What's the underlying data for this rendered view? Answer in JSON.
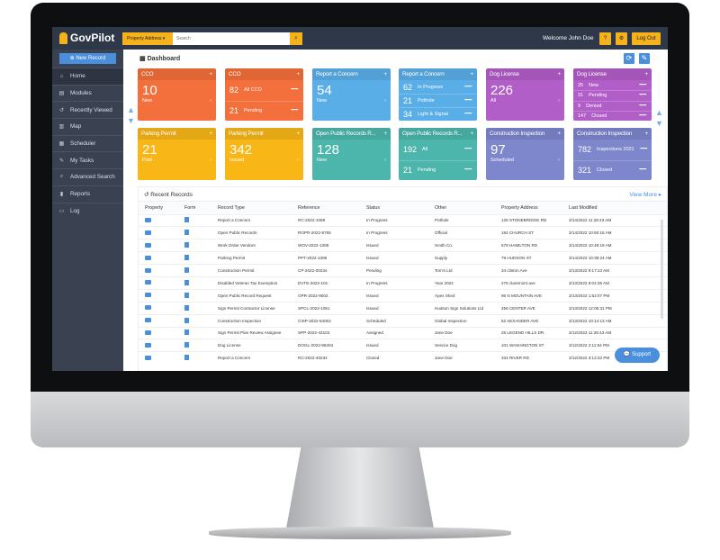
{
  "header": {
    "brand": "GovPilot",
    "search_scope": "Property Address",
    "search_placeholder": "Search",
    "welcome": "Welcome John Doe",
    "help": "?",
    "settings": "⚙",
    "logout": "Log Out"
  },
  "sidebar": {
    "new_record": "New Record",
    "items": [
      {
        "label": "Home",
        "icon": "home"
      },
      {
        "label": "Modules",
        "icon": "file"
      },
      {
        "label": "Recently Viewed",
        "icon": "history"
      },
      {
        "label": "Map",
        "icon": "map"
      },
      {
        "label": "Scheduler",
        "icon": "calendar"
      },
      {
        "label": "My Tasks",
        "icon": "edit"
      },
      {
        "label": "Advanced Search",
        "icon": "search"
      },
      {
        "label": "Reports",
        "icon": "chart"
      },
      {
        "label": "Log",
        "icon": "folder"
      }
    ]
  },
  "dashboard": {
    "title": "Dashboard",
    "tiles": [
      {
        "title": "CCO",
        "color": "#f36f3b",
        "number": "10",
        "label": "New"
      },
      {
        "title": "CCO",
        "color": "#f36f3b",
        "rows": [
          [
            "82",
            "All CCO"
          ],
          [
            "21",
            "Pending"
          ]
        ]
      },
      {
        "title": "Report a Concern",
        "color": "#5aaee8",
        "number": "54",
        "label": "New"
      },
      {
        "title": "Report a Concern",
        "color": "#5aaee8",
        "rows": [
          [
            "62",
            "In Progress"
          ],
          [
            "21",
            "Pothole"
          ],
          [
            "34",
            "Light & Signal"
          ]
        ]
      },
      {
        "title": "Dog License",
        "color": "#b25ec8",
        "number": "226",
        "label": "All"
      },
      {
        "title": "Dog License",
        "color": "#b25ec8",
        "rows": [
          [
            "25",
            "New"
          ],
          [
            "31",
            "Pending"
          ],
          [
            "9",
            "Denied"
          ],
          [
            "147",
            "Closed"
          ]
        ]
      },
      {
        "title": "Parking Permit",
        "color": "#f8b617",
        "number": "21",
        "label": "Paid"
      },
      {
        "title": "Parking Permit",
        "color": "#f8b617",
        "number": "342",
        "label": "Issued"
      },
      {
        "title": "Open Public Records R...",
        "color": "#4db6ac",
        "number": "128",
        "label": "New"
      },
      {
        "title": "Open Public Records R...",
        "color": "#4db6ac",
        "rows": [
          [
            "192",
            "All"
          ],
          [
            "21",
            "Pending"
          ]
        ]
      },
      {
        "title": "Construction Inspection",
        "color": "#7e86cc",
        "number": "97",
        "label": "Scheduled"
      },
      {
        "title": "Construction Inspection",
        "color": "#7e86cc",
        "rows": [
          [
            "782",
            "Inspections 2021"
          ],
          [
            "321",
            "Closed"
          ]
        ]
      }
    ]
  },
  "recent": {
    "title": "Recent Records",
    "view_more": "View More ▸",
    "columns": [
      "Property",
      "Form",
      "Record Type",
      "Reference",
      "Status",
      "Other",
      "Property Address",
      "Last Modified"
    ],
    "rows": [
      [
        "Report a Concern",
        "RC-2022-1089",
        "In Progress",
        "Pothole",
        "128 STONEBRIDGE RD",
        "3/14/2022 11:28:43 AM"
      ],
      [
        "Open Public Records",
        "ROPR-2022-8765",
        "In Progress",
        "Official",
        "184 CHURCH ST",
        "3/14/2022 10:50:15 AM"
      ],
      [
        "Work Order Vendors",
        "WOV-2022-1306",
        "Issued",
        "Smith Co.",
        "578 HAMILTON RD",
        "3/14/2022 10:49:19 AM"
      ],
      [
        "Parking Permit",
        "PPT-2022-1306",
        "Issued",
        "Supply",
        "79 HUDSON ST",
        "3/14/2022 10:38:24 AM"
      ],
      [
        "Construction Permit",
        "CP-2022-00234",
        "Pending",
        "Tom's Ltd",
        "34 clinton Ave",
        "3/13/2022 9:17:13 AM"
      ],
      [
        "Disabled Veteran Tax Exemption",
        "DVTE-2022-101",
        "In Progress",
        "Year 2022",
        "276 claremont ave",
        "3/13/2022 9:04:35 AM"
      ],
      [
        "Open Public Record Request",
        "OPR-2022-9002",
        "Issued",
        "Apex Shed",
        "95 N MOUNTAIN AVE",
        "3/13/2022 1:52:07 PM"
      ],
      [
        "Sign Permit Contractor License",
        "SPCL-2022-1051",
        "Issued",
        "Hudson Sign Solutions Ltd",
        "456 CENTER AVE",
        "3/13/2022 12:05:31 PM"
      ],
      [
        "Construction Inspection",
        "CISP-2022-54002",
        "Scheduled",
        "Global Inspection",
        "52 AEXANDER AVE",
        "3/13/2022 10:14:13 AM"
      ],
      [
        "Sign Permit Plan Review Assignee",
        "SPP-2022-43102",
        "Assigned",
        "Jane Doe",
        "25 LEGEND HILLS DR",
        "3/12/2022 11:28:43 AM"
      ],
      [
        "Dog License",
        "DOGL-2022-96304",
        "Issued",
        "Service Dog",
        "101 WASHINGTON ST",
        "3/12/2022 2:11:54 PM"
      ],
      [
        "Report a Concern",
        "RC-2022-40234",
        "Closed",
        "Jane Doe",
        "334 RIVER RD",
        "3/12/2022 3:12:32 PM"
      ]
    ]
  },
  "support": "Support"
}
